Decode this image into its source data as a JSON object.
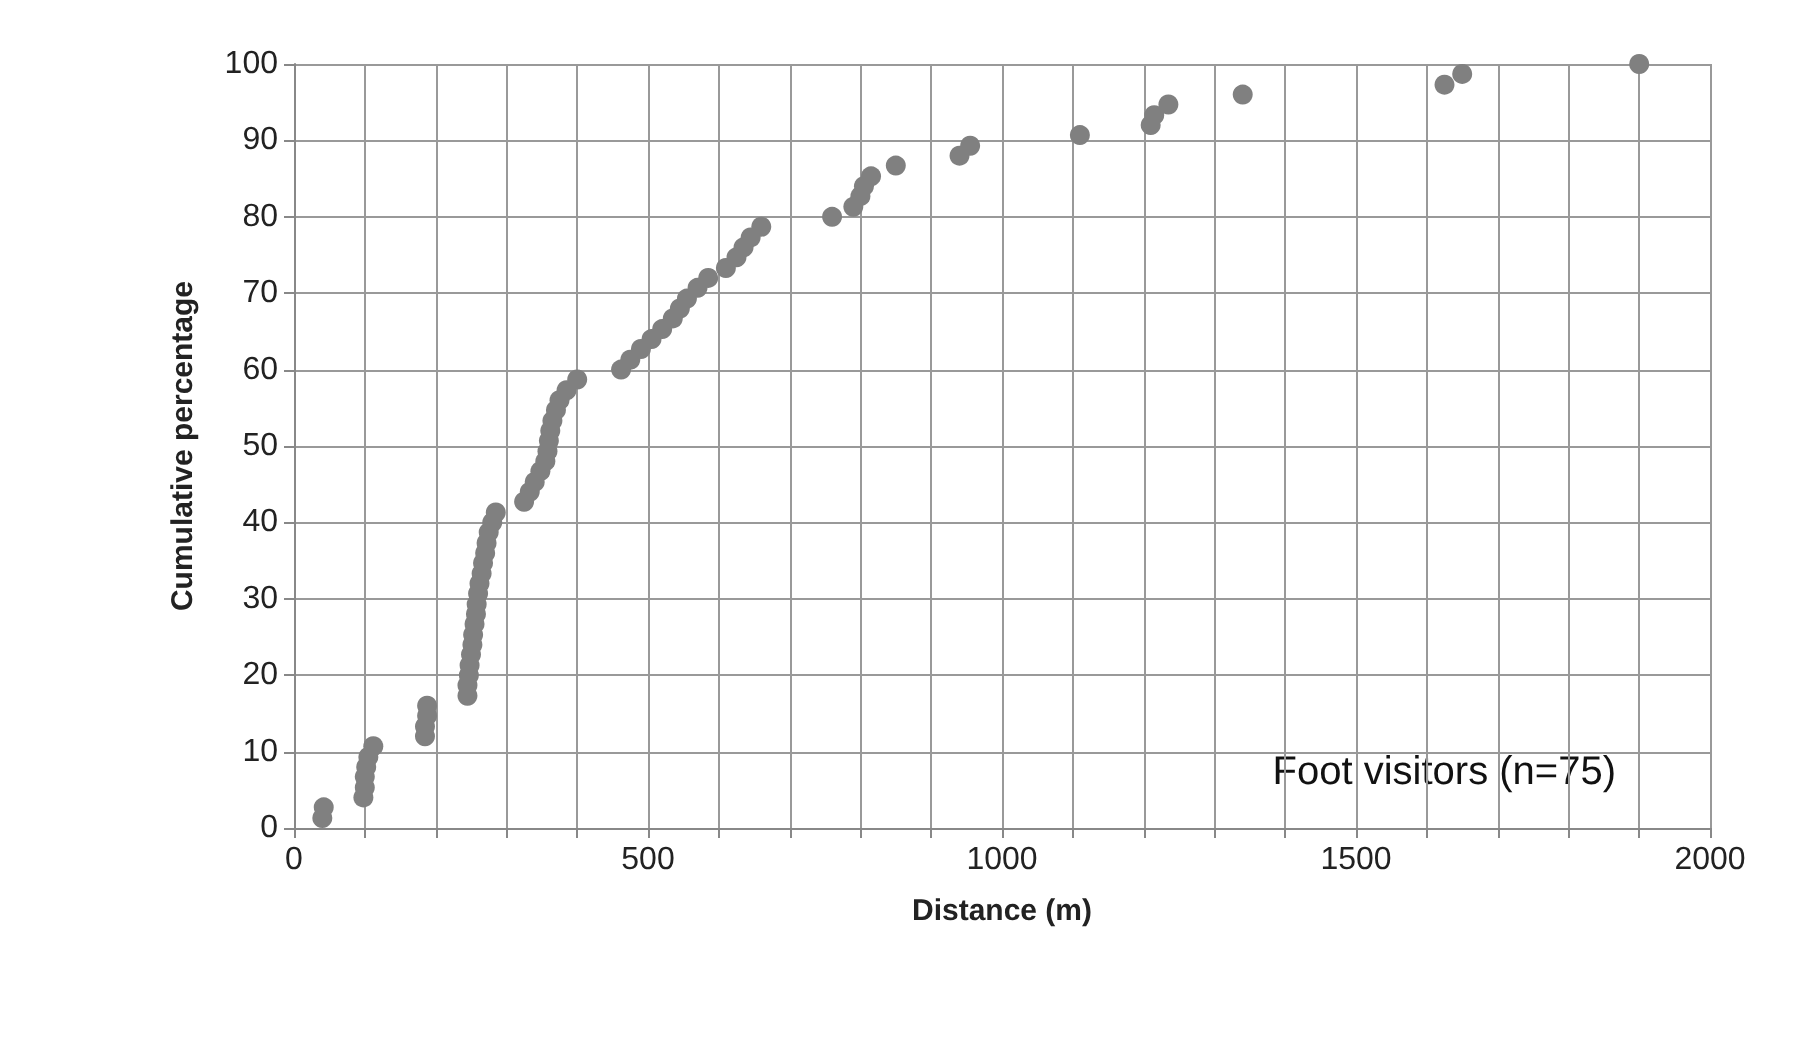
{
  "chart_data": {
    "type": "scatter",
    "xlabel": "Distance (m)",
    "ylabel": "Cumulative percentage",
    "annotations": [
      "Foot visitors (n=75)"
    ],
    "x": [
      40,
      42,
      98,
      100,
      100,
      102,
      105,
      112,
      185,
      185,
      188,
      188,
      245,
      245,
      247,
      248,
      250,
      252,
      253,
      255,
      257,
      258,
      260,
      262,
      265,
      267,
      270,
      272,
      275,
      280,
      285,
      325,
      333,
      340,
      348,
      355,
      358,
      360,
      362,
      365,
      370,
      375,
      385,
      400,
      462,
      475,
      490,
      505,
      520,
      535,
      545,
      555,
      570,
      585,
      610,
      625,
      635,
      645,
      660,
      760,
      790,
      800,
      805,
      815,
      850,
      940,
      955,
      1110,
      1210,
      1215,
      1235,
      1340,
      1625,
      1650,
      1900
    ],
    "series": [
      {
        "color": "#808080",
        "values": [
          1.3,
          2.7,
          4.0,
          5.3,
          6.7,
          8.0,
          9.3,
          10.7,
          12.0,
          13.3,
          14.7,
          16.0,
          17.3,
          18.7,
          20.0,
          21.3,
          22.7,
          24.0,
          25.3,
          26.7,
          28.0,
          29.3,
          30.7,
          32.0,
          33.3,
          34.7,
          36.0,
          37.3,
          38.7,
          40.0,
          41.3,
          42.7,
          44.0,
          45.3,
          46.7,
          48.0,
          49.3,
          50.7,
          52.0,
          53.3,
          54.7,
          56.0,
          57.3,
          58.7,
          60.0,
          61.3,
          62.7,
          64.0,
          65.3,
          66.7,
          68.0,
          69.3,
          70.7,
          72.0,
          73.3,
          74.7,
          76.0,
          77.3,
          78.7,
          80.0,
          81.3,
          82.7,
          84.0,
          85.3,
          86.7,
          88.0,
          89.3,
          90.7,
          92.0,
          93.3,
          94.7,
          96.0,
          97.3,
          98.7,
          100.0
        ]
      }
    ],
    "xlim": [
      0,
      2000
    ],
    "xticks": [
      0,
      {
        "value": 100,
        "label": null
      },
      {
        "value": 200,
        "label": null
      },
      {
        "value": 300,
        "label": null
      },
      {
        "value": 400,
        "label": null
      },
      500,
      {
        "value": 600,
        "label": null
      },
      {
        "value": 700,
        "label": null
      },
      {
        "value": 800,
        "label": null
      },
      {
        "value": 900,
        "label": null
      },
      1000,
      {
        "value": 1100,
        "label": null
      },
      {
        "value": 1200,
        "label": null
      },
      {
        "value": 1300,
        "label": null
      },
      {
        "value": 1400,
        "label": null
      },
      1500,
      {
        "value": 1600,
        "label": null
      },
      {
        "value": 1700,
        "label": null
      },
      {
        "value": 1800,
        "label": null
      },
      {
        "value": 1900,
        "label": null
      },
      2000
    ],
    "ylim": [
      0,
      100
    ],
    "yticks": [
      0,
      10,
      20,
      30,
      40,
      50,
      60,
      70,
      80,
      90,
      100
    ],
    "grid": true,
    "marker": "circle"
  }
}
